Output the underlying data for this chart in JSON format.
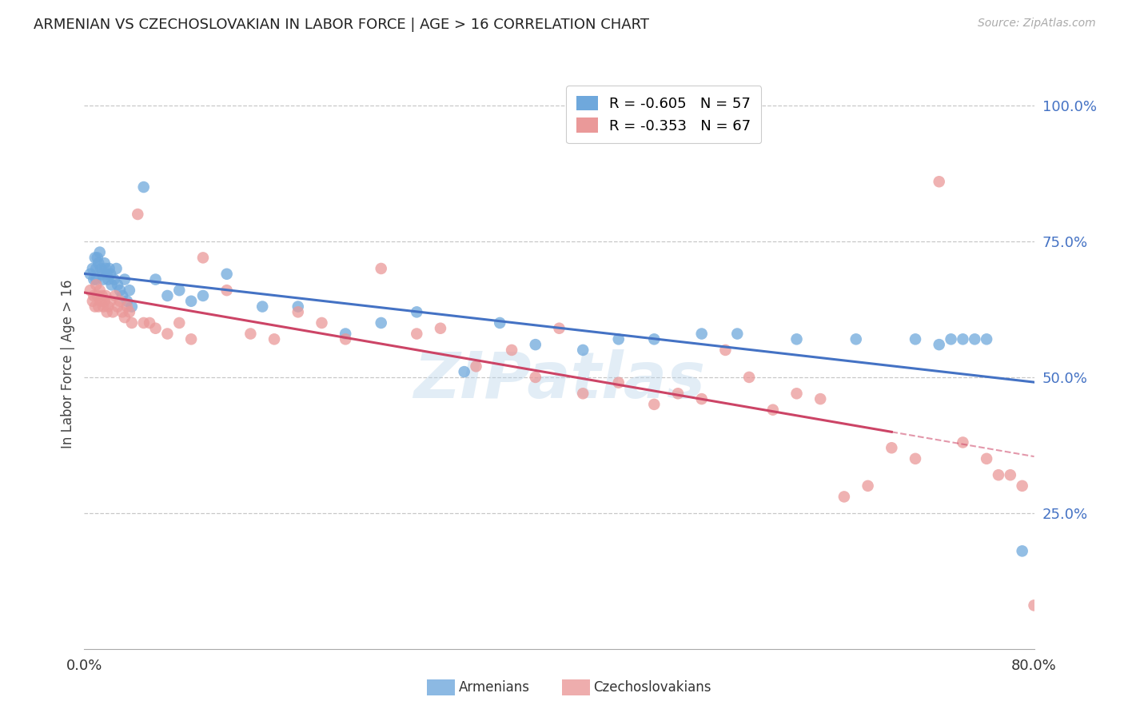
{
  "title": "ARMENIAN VS CZECHOSLOVAKIAN IN LABOR FORCE | AGE > 16 CORRELATION CHART",
  "source": "Source: ZipAtlas.com",
  "ylabel": "In Labor Force | Age > 16",
  "xlim": [
    0.0,
    0.8
  ],
  "ylim": [
    0.0,
    1.05
  ],
  "right_ytick_values": [
    1.0,
    0.75,
    0.5,
    0.25
  ],
  "right_ytick_labels": [
    "100.0%",
    "75.0%",
    "50.0%",
    "25.0%"
  ],
  "background_color": "#ffffff",
  "grid_color": "#c8c8c8",
  "blue_color": "#6fa8dc",
  "pink_color": "#ea9999",
  "blue_line_color": "#4472c4",
  "pink_line_color": "#cc4466",
  "right_axis_color": "#4472c4",
  "watermark": "ZIPatlas",
  "blue_legend_label": "R = -0.605   N = 57",
  "pink_legend_label": "R = -0.353   N = 67",
  "armenian_x": [
    0.005,
    0.007,
    0.008,
    0.009,
    0.01,
    0.01,
    0.011,
    0.012,
    0.013,
    0.014,
    0.015,
    0.016,
    0.017,
    0.018,
    0.019,
    0.02,
    0.021,
    0.022,
    0.023,
    0.025,
    0.027,
    0.028,
    0.03,
    0.032,
    0.034,
    0.036,
    0.038,
    0.04,
    0.05,
    0.06,
    0.07,
    0.08,
    0.09,
    0.1,
    0.12,
    0.15,
    0.18,
    0.22,
    0.25,
    0.28,
    0.32,
    0.35,
    0.38,
    0.42,
    0.45,
    0.48,
    0.52,
    0.55,
    0.6,
    0.65,
    0.7,
    0.72,
    0.73,
    0.74,
    0.75,
    0.76,
    0.79
  ],
  "armenian_y": [
    0.69,
    0.7,
    0.68,
    0.72,
    0.7,
    0.68,
    0.72,
    0.71,
    0.73,
    0.7,
    0.69,
    0.68,
    0.71,
    0.7,
    0.69,
    0.68,
    0.7,
    0.69,
    0.67,
    0.68,
    0.7,
    0.67,
    0.66,
    0.65,
    0.68,
    0.64,
    0.66,
    0.63,
    0.85,
    0.68,
    0.65,
    0.66,
    0.64,
    0.65,
    0.69,
    0.63,
    0.63,
    0.58,
    0.6,
    0.62,
    0.51,
    0.6,
    0.56,
    0.55,
    0.57,
    0.57,
    0.58,
    0.58,
    0.57,
    0.57,
    0.57,
    0.56,
    0.57,
    0.57,
    0.57,
    0.57,
    0.18
  ],
  "czechoslovakian_x": [
    0.005,
    0.007,
    0.008,
    0.009,
    0.01,
    0.011,
    0.012,
    0.013,
    0.014,
    0.015,
    0.016,
    0.017,
    0.018,
    0.019,
    0.02,
    0.022,
    0.024,
    0.026,
    0.028,
    0.03,
    0.032,
    0.034,
    0.036,
    0.038,
    0.04,
    0.045,
    0.05,
    0.055,
    0.06,
    0.07,
    0.08,
    0.09,
    0.1,
    0.12,
    0.14,
    0.16,
    0.18,
    0.2,
    0.22,
    0.25,
    0.28,
    0.3,
    0.33,
    0.36,
    0.38,
    0.4,
    0.42,
    0.45,
    0.48,
    0.5,
    0.52,
    0.54,
    0.56,
    0.58,
    0.6,
    0.62,
    0.64,
    0.66,
    0.68,
    0.7,
    0.72,
    0.74,
    0.76,
    0.77,
    0.78,
    0.79,
    0.8
  ],
  "czechoslovakian_y": [
    0.66,
    0.64,
    0.65,
    0.63,
    0.67,
    0.65,
    0.63,
    0.66,
    0.64,
    0.65,
    0.63,
    0.64,
    0.65,
    0.62,
    0.63,
    0.64,
    0.62,
    0.65,
    0.63,
    0.64,
    0.62,
    0.61,
    0.63,
    0.62,
    0.6,
    0.8,
    0.6,
    0.6,
    0.59,
    0.58,
    0.6,
    0.57,
    0.72,
    0.66,
    0.58,
    0.57,
    0.62,
    0.6,
    0.57,
    0.7,
    0.58,
    0.59,
    0.52,
    0.55,
    0.5,
    0.59,
    0.47,
    0.49,
    0.45,
    0.47,
    0.46,
    0.55,
    0.5,
    0.44,
    0.47,
    0.46,
    0.28,
    0.3,
    0.37,
    0.35,
    0.86,
    0.38,
    0.35,
    0.32,
    0.32,
    0.3,
    0.08
  ]
}
